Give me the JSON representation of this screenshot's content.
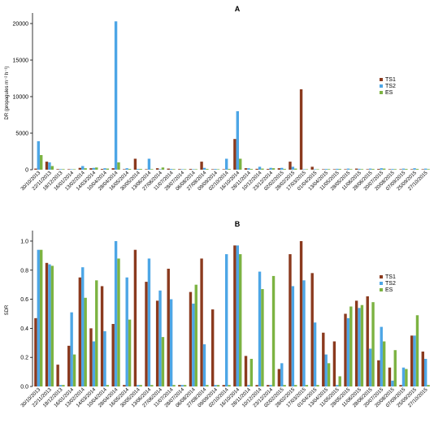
{
  "colors": {
    "TS1": "#8B3A1E",
    "TS2": "#4DA6E6",
    "ES": "#7CB342"
  },
  "chart_data": [
    {
      "type": "bar",
      "panel_label": "A",
      "ylabel": "DR (propagules m⁻² h⁻¹)",
      "ylim": [
        0,
        21000
      ],
      "yticks": [
        0,
        5000,
        10000,
        15000,
        20000
      ],
      "legend_position": "right",
      "categories": [
        "30/10/2013",
        "22/11/2013",
        "18/12/2013",
        "16/01/2014",
        "13/02/2014",
        "14/03/2014",
        "10/04/2014",
        "28/04/2014",
        "16/05/2014",
        "30/05/2014",
        "13/06/2014",
        "27/06/2014",
        "11/07/2014",
        "28/07/2014",
        "06/08/2014",
        "27/08/2014",
        "09/09/2014",
        "02/10/2014",
        "16/10/2014",
        "28/11/2014",
        "10/12/2014",
        "23/12/2014",
        "02/02/2015",
        "28/02/2015",
        "17/03/2015",
        "01/04/2015",
        "13/04/2015",
        "11/05/2015",
        "28/05/2015",
        "11/06/2015",
        "28/06/2015",
        "20/07/2015",
        "20/08/2015",
        "07/09/2015",
        "25/09/2015",
        "27/10/2015"
      ],
      "series": [
        {
          "name": "TS1",
          "values": [
            150,
            1100,
            80,
            60,
            250,
            200,
            100,
            200,
            30,
            1500,
            50,
            200,
            150,
            80,
            100,
            1100,
            10,
            20,
            4200,
            200,
            120,
            100,
            200,
            1100,
            11000,
            400,
            50,
            10,
            10,
            150,
            50,
            100,
            50,
            20,
            50,
            20
          ]
        },
        {
          "name": "TS2",
          "values": [
            3900,
            1000,
            80,
            50,
            500,
            250,
            200,
            20300,
            200,
            100,
            1500,
            50,
            100,
            50,
            50,
            250,
            100,
            1500,
            8000,
            200,
            400,
            250,
            250,
            400,
            50,
            50,
            100,
            120,
            150,
            120,
            150,
            200,
            100,
            150,
            200,
            150
          ]
        },
        {
          "name": "ES",
          "values": [
            2000,
            500,
            80,
            40,
            200,
            300,
            150,
            1000,
            100,
            100,
            80,
            300,
            80,
            50,
            60,
            100,
            50,
            100,
            1500,
            100,
            150,
            200,
            100,
            150,
            50,
            40,
            80,
            100,
            80,
            80,
            100,
            150,
            80,
            100,
            100,
            80
          ]
        }
      ]
    },
    {
      "type": "bar",
      "panel_label": "B",
      "ylabel": "SDR",
      "ylim": [
        0,
        1.05
      ],
      "yticks": [
        "0.0",
        "0.2",
        "0.4",
        "0.6",
        "0.8",
        "1.0"
      ],
      "legend_position": "right",
      "categories": [
        "30/10/2013",
        "22/11/2013",
        "18/12/2013",
        "16/01/2014",
        "13/02/2014",
        "14/03/2014",
        "10/04/2014",
        "28/04/2014",
        "16/05/2014",
        "30/05/2014",
        "13/06/2014",
        "27/06/2014",
        "11/07/2014",
        "28/07/2014",
        "06/08/2014",
        "27/08/2014",
        "09/09/2014",
        "02/10/2014",
        "16/10/2014",
        "28/11/2014",
        "10/12/2014",
        "23/12/2014",
        "02/02/2015",
        "28/02/2015",
        "17/03/2015",
        "01/04/2015",
        "13/04/2015",
        "11/05/2015",
        "28/05/2015",
        "11/06/2015",
        "28/06/2015",
        "20/07/2015",
        "20/08/2015",
        "07/09/2015",
        "25/09/2015",
        "27/10/2015"
      ],
      "series": [
        {
          "name": "TS1",
          "values": [
            0.47,
            0.85,
            0.15,
            0.28,
            0.75,
            0.4,
            0.69,
            0.43,
            0.01,
            0.94,
            0.72,
            0.59,
            0.81,
            0.01,
            0.65,
            0.88,
            0.53,
            0.01,
            0.97,
            0.21,
            0.01,
            0.01,
            0.12,
            0.91,
            1.0,
            0.78,
            0.37,
            0.31,
            0.5,
            0.59,
            0.62,
            0.18,
            0.13,
            0.01,
            0.35,
            0.24
          ]
        },
        {
          "name": "TS2",
          "values": [
            0.94,
            0.84,
            0.01,
            0.51,
            0.82,
            0.31,
            0.38,
            1.0,
            0.75,
            0.01,
            0.88,
            0.66,
            0.6,
            0.01,
            0.57,
            0.29,
            0.01,
            0.91,
            0.97,
            0.01,
            0.79,
            0.01,
            0.16,
            0.69,
            0.73,
            0.44,
            0.22,
            0.01,
            0.47,
            0.54,
            0.26,
            0.41,
            0.04,
            0.13,
            0.35,
            0.19
          ]
        },
        {
          "name": "ES",
          "values": [
            0.94,
            0.83,
            0.01,
            0.22,
            0.61,
            0.73,
            0.01,
            0.88,
            0.46,
            0.01,
            0.01,
            0.34,
            0.01,
            0.01,
            0.7,
            0.01,
            0.01,
            0.01,
            0.91,
            0.19,
            0.67,
            0.76,
            0.01,
            0.01,
            0.01,
            0.01,
            0.16,
            0.07,
            0.55,
            0.56,
            0.58,
            0.31,
            0.25,
            0.12,
            0.49,
            0.01
          ]
        }
      ]
    }
  ]
}
